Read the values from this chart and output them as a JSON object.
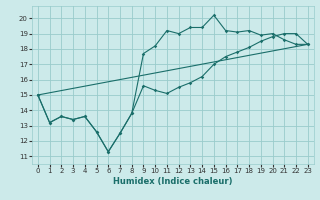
{
  "xlabel": "Humidex (Indice chaleur)",
  "ylabel": "",
  "bg_color": "#cceaea",
  "grid_color": "#99cccc",
  "line_color": "#1a6e6a",
  "xlim": [
    -0.5,
    23.5
  ],
  "ylim": [
    10.5,
    20.8
  ],
  "yticks": [
    11,
    12,
    13,
    14,
    15,
    16,
    17,
    18,
    19,
    20
  ],
  "xticks": [
    0,
    1,
    2,
    3,
    4,
    5,
    6,
    7,
    8,
    9,
    10,
    11,
    12,
    13,
    14,
    15,
    16,
    17,
    18,
    19,
    20,
    21,
    22,
    23
  ],
  "line1_x": [
    0,
    1,
    2,
    3,
    4,
    5,
    6,
    7,
    8,
    9,
    10,
    11,
    12,
    13,
    14,
    15,
    16,
    17,
    18,
    19,
    20,
    21,
    22,
    23
  ],
  "line1_y": [
    15.0,
    13.2,
    13.6,
    13.4,
    13.6,
    12.6,
    11.3,
    12.5,
    13.8,
    17.7,
    18.2,
    19.2,
    19.0,
    19.4,
    19.4,
    20.2,
    19.2,
    19.1,
    19.2,
    18.9,
    19.0,
    18.6,
    18.3,
    18.3
  ],
  "line2_x": [
    0,
    1,
    2,
    3,
    4,
    5,
    6,
    7,
    8,
    9,
    10,
    11,
    12,
    13,
    14,
    15,
    16,
    17,
    18,
    19,
    20,
    21,
    22,
    23
  ],
  "line2_y": [
    15.0,
    13.2,
    13.6,
    13.4,
    13.6,
    12.6,
    11.3,
    12.5,
    13.8,
    15.6,
    15.3,
    15.1,
    15.5,
    15.8,
    16.2,
    17.0,
    17.5,
    17.8,
    18.1,
    18.5,
    18.8,
    19.0,
    19.0,
    18.3
  ],
  "line3_x": [
    0,
    23
  ],
  "line3_y": [
    15.0,
    18.3
  ]
}
